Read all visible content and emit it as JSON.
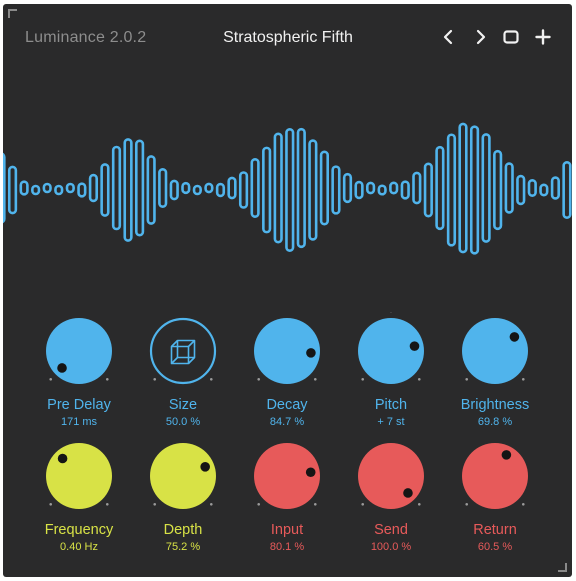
{
  "app": {
    "title": "Luminance 2.0.2"
  },
  "preset": {
    "name": "Stratospheric Fifth"
  },
  "toolbar": [
    {
      "icon": "chevron-left-icon"
    },
    {
      "icon": "chevron-right-icon"
    },
    {
      "icon": "square-icon"
    },
    {
      "icon": "plus-icon"
    }
  ],
  "colors": {
    "background": "#2a2a2b",
    "blue": "#50b4ec",
    "yellow": "#d8e246",
    "red": "#e75a5a",
    "dots": "#9a9a9a"
  },
  "knobs": [
    {
      "id": "pre-delay",
      "label": "Pre Delay",
      "value": "171 ms",
      "color": "blue",
      "position": 0.0
    },
    {
      "id": "size",
      "label": "Size",
      "value": "50.0 %",
      "color": "blue",
      "style": "outline-cube"
    },
    {
      "id": "decay",
      "label": "Decay",
      "value": "84.7 %",
      "color": "blue",
      "position": 0.85
    },
    {
      "id": "pitch",
      "label": "Pitch",
      "value": "+ 7 st",
      "color": "blue",
      "position": 0.79
    },
    {
      "id": "brightness",
      "label": "Brightness",
      "value": "69.8 %",
      "color": "blue",
      "position": 0.7
    },
    {
      "id": "frequency",
      "label": "Frequency",
      "value": "0.40 Hz",
      "color": "yellow",
      "position": 0.34
    },
    {
      "id": "depth",
      "label": "Depth",
      "value": "75.2 %",
      "color": "yellow",
      "position": 0.75
    },
    {
      "id": "input",
      "label": "Input",
      "value": "80.1 %",
      "color": "red",
      "position": 0.8
    },
    {
      "id": "send",
      "label": "Send",
      "value": "100.0 %",
      "color": "red",
      "position": 1.0
    },
    {
      "id": "return",
      "label": "Return",
      "value": "60.5 %",
      "color": "red",
      "position": 0.605
    }
  ]
}
